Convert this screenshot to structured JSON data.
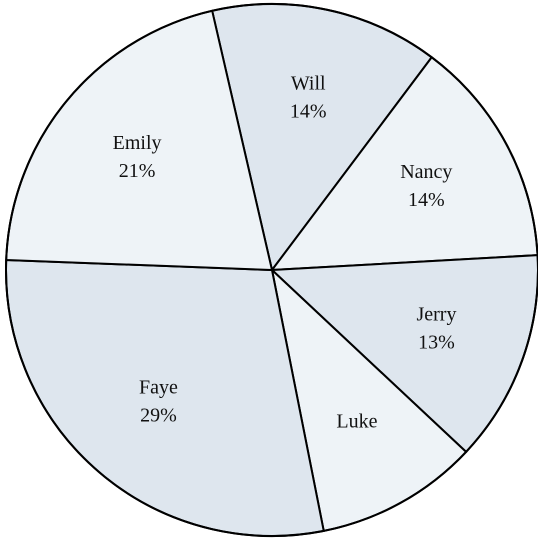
{
  "chart_data": {
    "type": "pie",
    "slices": [
      {
        "label": "Will",
        "value": 14,
        "value_text": "14%",
        "color": "#dee6ee"
      },
      {
        "label": "Nancy",
        "value": 14,
        "value_text": "14%",
        "color": "#eef3f7"
      },
      {
        "label": "Jerry",
        "value": 13,
        "value_text": "13%",
        "color": "#dee6ee"
      },
      {
        "label": "Luke",
        "value": 10,
        "value_text": "",
        "color": "#eef3f7"
      },
      {
        "label": "Faye",
        "value": 29,
        "value_text": "29%",
        "color": "#dee6ee"
      },
      {
        "label": "Emily",
        "value": 21,
        "value_text": "21%",
        "color": "#eef3f7"
      }
    ],
    "start_angle_deg": -13,
    "direction": "clockwise",
    "stroke_color": "#000000"
  }
}
